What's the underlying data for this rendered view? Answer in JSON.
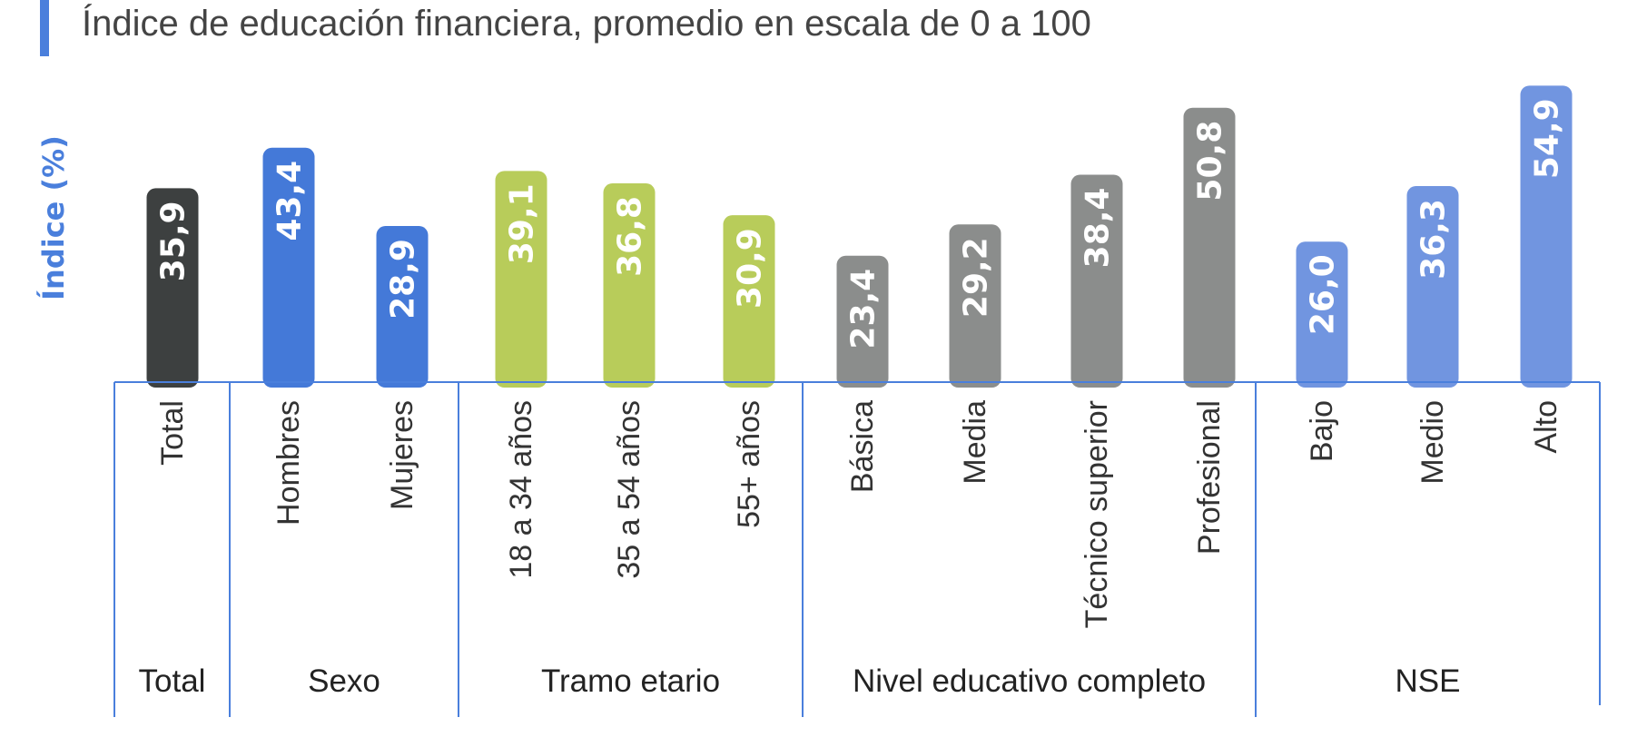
{
  "colors": {
    "accent": "#4a7fdc",
    "axis": "#4a7fdc",
    "total": "#3d4040",
    "sexo": "#4479d8",
    "tramo": "#b8cc5a",
    "nivel": "#8b8d8c",
    "nse": "#7195e0"
  },
  "chart_data": {
    "type": "bar",
    "title": "Índice de educación financiera, promedio en escala de 0 a 100",
    "ylabel": "Índice (%)",
    "ylim": [
      0,
      60
    ],
    "categories": [
      "Total",
      "Hombres",
      "Mujeres",
      "18 a 34 años",
      "35 a 54 años",
      "55+ años",
      "Básica",
      "Media",
      "Técnico superior",
      "Profesional",
      "Bajo",
      "Medio",
      "Alto"
    ],
    "values": [
      35.9,
      43.4,
      28.9,
      39.1,
      36.8,
      30.9,
      23.4,
      29.2,
      38.4,
      50.8,
      26.0,
      36.3,
      54.9
    ],
    "data_labels": [
      "35,9",
      "43,4",
      "28,9",
      "39,1",
      "36,8",
      "30,9",
      "23,4",
      "29,2",
      "38,4",
      "50,8",
      "26,0",
      "36,3",
      "54,9"
    ],
    "groups": [
      {
        "name": "Total",
        "count": 1,
        "color_key": "total"
      },
      {
        "name": "Sexo",
        "count": 2,
        "color_key": "sexo"
      },
      {
        "name": "Tramo etario",
        "count": 3,
        "color_key": "tramo"
      },
      {
        "name": "Nivel educativo completo",
        "count": 4,
        "color_key": "nivel"
      },
      {
        "name": "NSE",
        "count": 3,
        "color_key": "nse"
      }
    ],
    "grid": false,
    "legend": "none"
  }
}
